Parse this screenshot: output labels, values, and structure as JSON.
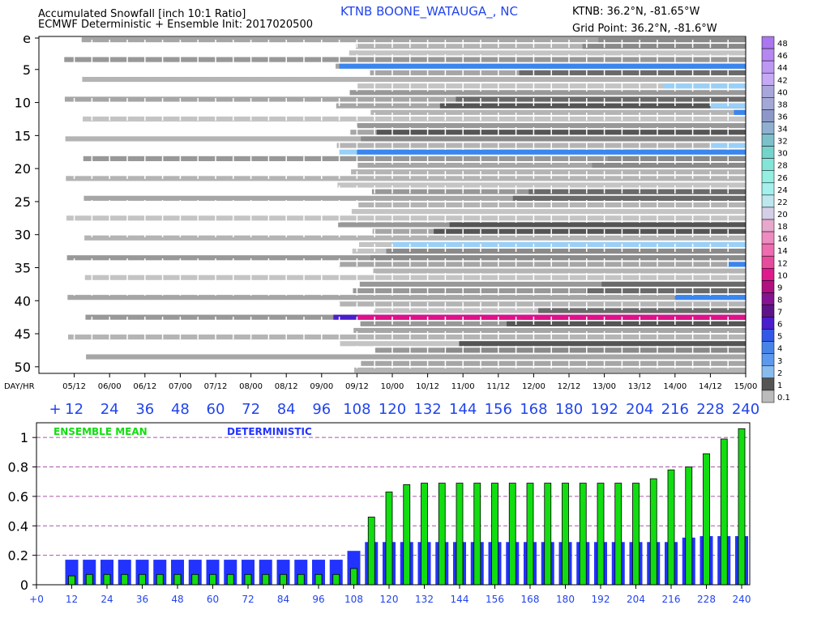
{
  "header": {
    "title_line1": "Accumulated Snowfall [inch 10:1 Ratio]",
    "title_line2": "ECMWF Deterministic + Ensemble Init: 2017020500",
    "station": "KTNB  BOONE_WATAUGA_, NC",
    "station_coords": "KTNB: 36.2°N, -81.65°W",
    "grid_point": "Grid Point: 36.2°N, -81.6°W"
  },
  "chart_data": [
    {
      "type": "heatmap",
      "name": "ensemble-plume",
      "y_tick_labels": [
        "e",
        "5",
        "10",
        "15",
        "20",
        "25",
        "30",
        "35",
        "40",
        "45",
        "50"
      ],
      "y_tick_values": [
        0,
        5,
        10,
        15,
        20,
        25,
        30,
        35,
        40,
        45,
        50
      ],
      "x_axis_label": "DAY/HR",
      "x_date_labels": [
        "05/12",
        "06/00",
        "06/12",
        "07/00",
        "07/12",
        "08/00",
        "08/12",
        "09/00",
        "09/12",
        "10/00",
        "10/12",
        "11/00",
        "11/12",
        "12/00",
        "12/12",
        "13/00",
        "13/12",
        "14/00",
        "14/12",
        "15/00"
      ],
      "x_hour_labels": [
        "+",
        "12",
        "24",
        "36",
        "48",
        "60",
        "72",
        "84",
        "96",
        "108",
        "120",
        "132",
        "144",
        "156",
        "168",
        "180",
        "192",
        "204",
        "216",
        "228",
        "240"
      ],
      "x_range_hours": [
        0,
        240
      ],
      "members": 51,
      "legend_labels": [
        "48",
        "46",
        "44",
        "42",
        "40",
        "38",
        "36",
        "34",
        "32",
        "30",
        "28",
        "26",
        "24",
        "22",
        "20",
        "18",
        "16",
        "14",
        "12",
        "10",
        "9",
        "8",
        "7",
        "6",
        "5",
        "4",
        "3",
        "2",
        "1",
        "0.1"
      ],
      "legend_colors": [
        "#aa77ee",
        "#b488f0",
        "#bd98f2",
        "#c6a8f4",
        "#a9a6dc",
        "#a3a8d6",
        "#8e98c8",
        "#8fb0d0",
        "#7cc0cc",
        "#74d4cc",
        "#84e4d8",
        "#94eee2",
        "#a4f0ec",
        "#bee6ee",
        "#d4cfe6",
        "#e6a8cc",
        "#ec8cc0",
        "#ee6cb0",
        "#e64c9c",
        "#de1a8c",
        "#b01080",
        "#841490",
        "#5e1488",
        "#4a1ecc",
        "#3358e8",
        "#4884e8",
        "#5c98ee",
        "#88bbee",
        "#555555",
        "#bbbbbb"
      ]
    },
    {
      "type": "bar",
      "name": "mean-vs-deterministic",
      "x_hours": [
        12,
        18,
        24,
        30,
        36,
        42,
        48,
        54,
        60,
        66,
        72,
        78,
        84,
        90,
        96,
        102,
        108,
        114,
        120,
        126,
        132,
        138,
        144,
        150,
        156,
        162,
        168,
        174,
        180,
        186,
        192,
        198,
        204,
        210,
        216,
        222,
        228,
        234,
        240
      ],
      "x_tick_labels": [
        "+0",
        "12",
        "24",
        "36",
        "48",
        "60",
        "72",
        "84",
        "96",
        "108",
        "120",
        "132",
        "144",
        "156",
        "168",
        "180",
        "192",
        "204",
        "216",
        "228",
        "240"
      ],
      "y_tick_labels": [
        "0",
        "0.2",
        "0.4",
        "0.6",
        "0.8",
        "1"
      ],
      "ylim": [
        0,
        1.1
      ],
      "grid": true,
      "series": [
        {
          "name": "DETERMINISTIC",
          "color": "#2233ff",
          "values": [
            0.17,
            0.17,
            0.17,
            0.17,
            0.17,
            0.17,
            0.17,
            0.17,
            0.17,
            0.17,
            0.17,
            0.17,
            0.17,
            0.17,
            0.17,
            0.17,
            0.23,
            0.29,
            0.29,
            0.29,
            0.29,
            0.29,
            0.29,
            0.29,
            0.29,
            0.29,
            0.29,
            0.29,
            0.29,
            0.29,
            0.29,
            0.29,
            0.29,
            0.29,
            0.29,
            0.32,
            0.33,
            0.33,
            0.33
          ]
        },
        {
          "name": "ENSEMBLE MEAN",
          "color": "#11dd11",
          "values": [
            0.06,
            0.07,
            0.07,
            0.07,
            0.07,
            0.07,
            0.07,
            0.07,
            0.07,
            0.07,
            0.07,
            0.07,
            0.07,
            0.07,
            0.07,
            0.07,
            0.11,
            0.46,
            0.63,
            0.68,
            0.69,
            0.69,
            0.69,
            0.69,
            0.69,
            0.69,
            0.69,
            0.69,
            0.69,
            0.69,
            0.69,
            0.69,
            0.69,
            0.72,
            0.78,
            0.8,
            0.89,
            0.99,
            1.06
          ]
        }
      ]
    }
  ]
}
